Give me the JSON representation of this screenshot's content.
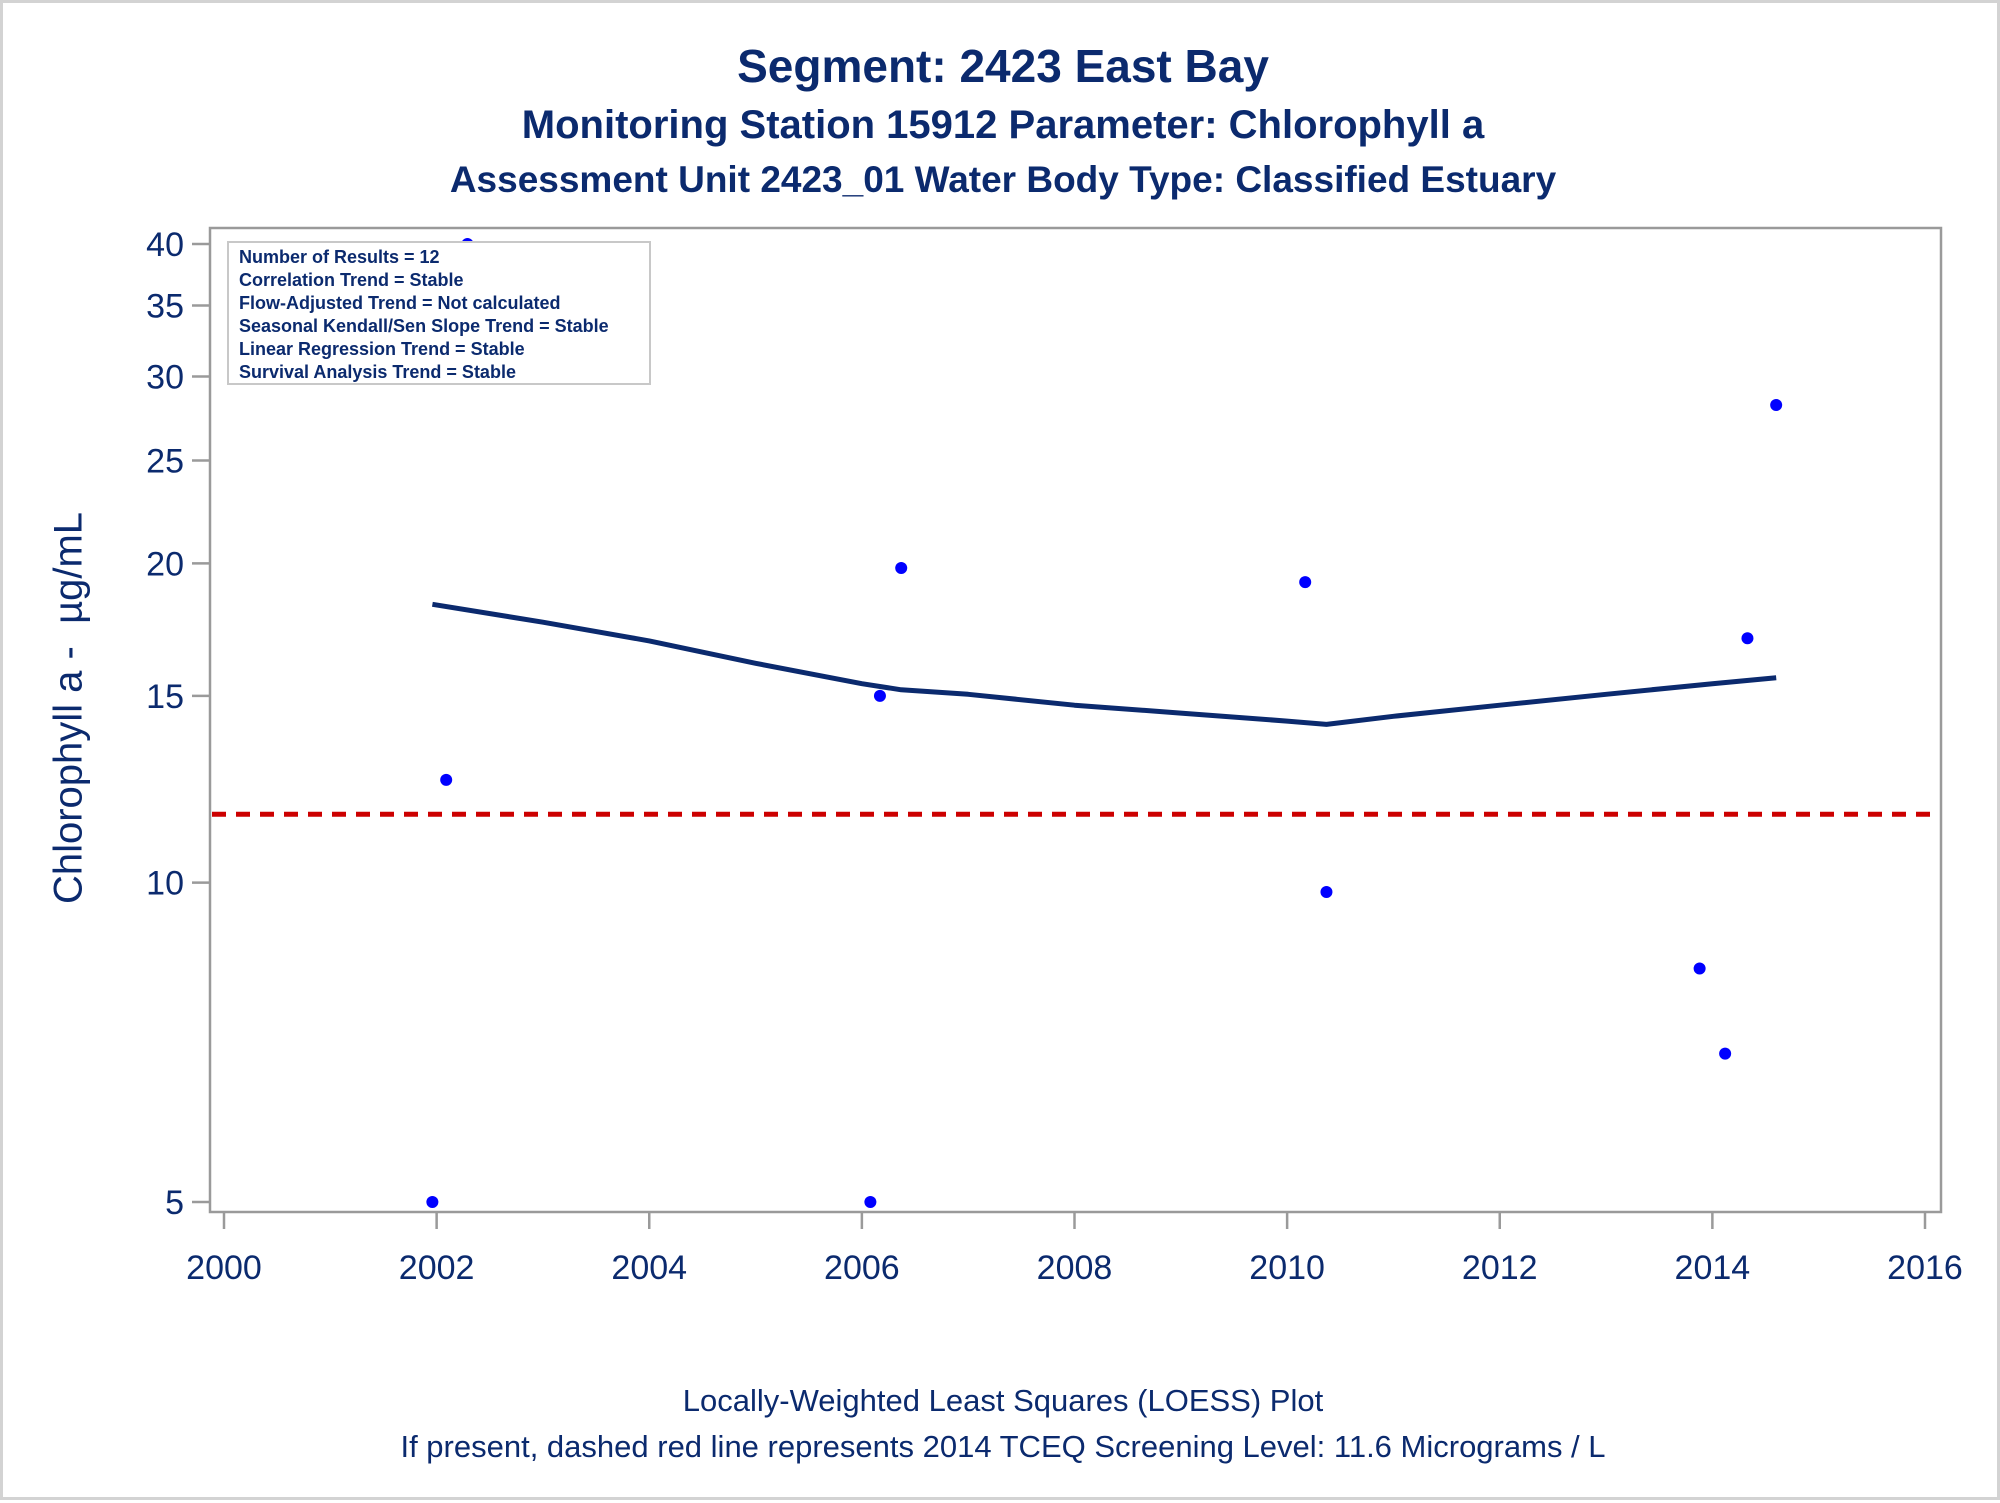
{
  "header": {
    "title": "Segment: 2423  East Bay",
    "subtitle1": "Monitoring Station 15912 Parameter: Chlorophyll a",
    "subtitle2": "Assessment Unit 2423_01   Water Body Type: Classified Estuary"
  },
  "footer": {
    "line1": "Locally-Weighted Least Squares (LOESS) Plot",
    "line2": "If present, dashed red line represents 2014 TCEQ Screening Level: 11.6 Micrograms / L"
  },
  "chart_data": {
    "type": "scatter",
    "ylabel": "Chlorophyll a -  µg/mL",
    "xlabel": "",
    "y_scale": "log",
    "xlim": [
      2000,
      2016
    ],
    "ylim": [
      4.8,
      43
    ],
    "x_ticks": [
      2000,
      2002,
      2004,
      2006,
      2008,
      2010,
      2012,
      2014,
      2016
    ],
    "y_ticks": [
      5,
      10,
      15,
      20,
      25,
      30,
      35,
      40
    ],
    "grid": false,
    "points": [
      {
        "x": 2001.96,
        "y": 5.0
      },
      {
        "x": 2002.09,
        "y": 12.5
      },
      {
        "x": 2002.29,
        "y": 40.0
      },
      {
        "x": 2006.08,
        "y": 5.0
      },
      {
        "x": 2006.17,
        "y": 15.0
      },
      {
        "x": 2006.37,
        "y": 19.8
      },
      {
        "x": 2010.17,
        "y": 19.2
      },
      {
        "x": 2010.37,
        "y": 9.8
      },
      {
        "x": 2013.88,
        "y": 8.3
      },
      {
        "x": 2014.12,
        "y": 6.9
      },
      {
        "x": 2014.33,
        "y": 17.0
      },
      {
        "x": 2014.6,
        "y": 28.2
      }
    ],
    "loess": [
      {
        "x": 2001.96,
        "y": 18.3
      },
      {
        "x": 2003.0,
        "y": 17.6
      },
      {
        "x": 2004.0,
        "y": 16.9
      },
      {
        "x": 2005.0,
        "y": 16.1
      },
      {
        "x": 2006.0,
        "y": 15.4
      },
      {
        "x": 2006.37,
        "y": 15.2
      },
      {
        "x": 2007.0,
        "y": 15.05
      },
      {
        "x": 2008.0,
        "y": 14.7
      },
      {
        "x": 2009.0,
        "y": 14.45
      },
      {
        "x": 2010.0,
        "y": 14.2
      },
      {
        "x": 2010.37,
        "y": 14.1
      },
      {
        "x": 2011.0,
        "y": 14.35
      },
      {
        "x": 2012.0,
        "y": 14.7
      },
      {
        "x": 2013.0,
        "y": 15.05
      },
      {
        "x": 2014.0,
        "y": 15.4
      },
      {
        "x": 2014.6,
        "y": 15.6
      }
    ],
    "screening_level": 11.6,
    "colors": {
      "points": "#0000ff",
      "loess": "#0b2a6e",
      "screening": "#cc0000",
      "axis": "#9a9a9a",
      "text": "#0b2a6e"
    },
    "legend_position": "top-left",
    "legend": [
      "Number of Results = 12",
      "Correlation Trend = Stable",
      "Flow-Adjusted Trend = Not calculated",
      "Seasonal Kendall/Sen Slope Trend = Stable",
      "Linear Regression Trend = Stable",
      "Survival Analysis Trend = Stable"
    ]
  }
}
